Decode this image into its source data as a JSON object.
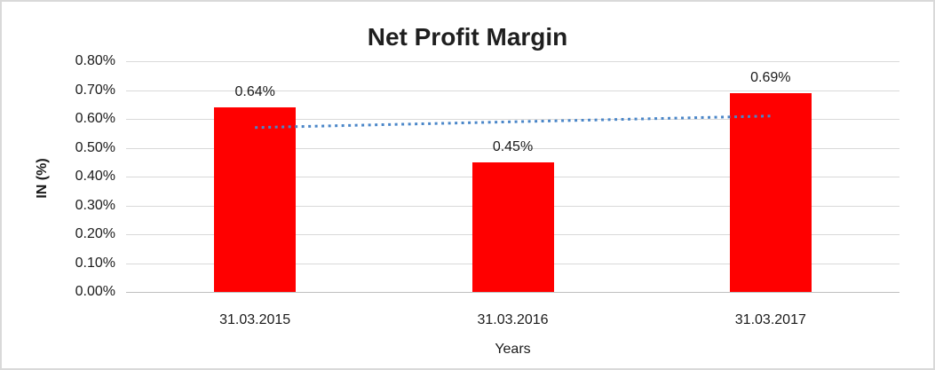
{
  "chart": {
    "title": "Net Profit Margin",
    "y_axis_title": "IN (%)",
    "x_axis_title": "Years"
  },
  "chart_data": {
    "type": "bar",
    "title": "Net Profit Margin",
    "xlabel": "Years",
    "ylabel": "IN (%)",
    "categories": [
      "31.03.2015",
      "31.03.2016",
      "31.03.2017"
    ],
    "values": [
      0.64,
      0.45,
      0.69
    ],
    "value_labels": [
      "0.64%",
      "0.45%",
      "0.69%"
    ],
    "ylim": [
      0,
      0.8
    ],
    "y_tick_values": [
      0,
      0.1,
      0.2,
      0.3,
      0.4,
      0.5,
      0.6,
      0.7,
      0.8
    ],
    "y_tick_labels": [
      "0.00%",
      "0.10%",
      "0.20%",
      "0.30%",
      "0.40%",
      "0.50%",
      "0.60%",
      "0.70%",
      "0.80%"
    ],
    "grid": true,
    "legend": "none",
    "bar_color": "#FF0000",
    "gridline_color": "#D9D9D9",
    "axis_line_color": "#BFBFBF",
    "trendline": {
      "style": "dotted",
      "color": "#4A86C8",
      "start_value": 0.57,
      "end_value": 0.61
    }
  }
}
